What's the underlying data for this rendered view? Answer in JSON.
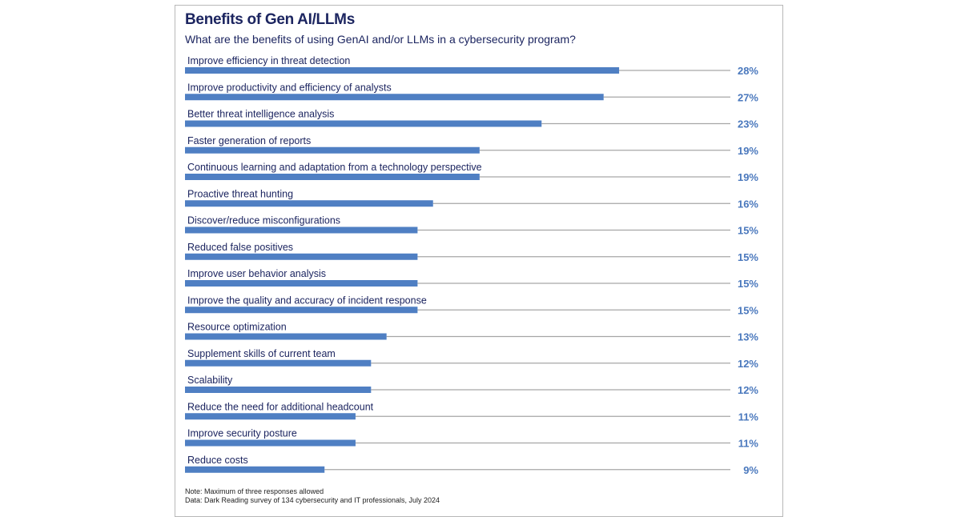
{
  "chart_data": {
    "type": "bar",
    "orientation": "horizontal",
    "title": "Benefits of Gen AI/LLMs",
    "subtitle": "What are the benefits of using GenAI and/or LLMs in a cybersecurity program?",
    "categories": [
      "Improve efficiency in threat detection",
      "Improve productivity and efficiency of analysts",
      "Better threat intelligence analysis",
      "Faster generation of reports",
      "Continuous learning and adaptation from a technology perspective",
      "Proactive threat hunting",
      "Discover/reduce misconfigurations",
      "Reduced false positives",
      "Improve user behavior analysis",
      "Improve the quality and accuracy of incident response",
      "Resource optimization",
      "Supplement skills of current team",
      "Scalability",
      "Reduce the need for additional headcount",
      "Improve security posture",
      "Reduce costs"
    ],
    "values": [
      28,
      27,
      23,
      19,
      19,
      16,
      15,
      15,
      15,
      15,
      13,
      12,
      12,
      11,
      11,
      9
    ],
    "value_suffix": "%",
    "xlim": [
      0,
      35
    ],
    "grid": false,
    "colors": {
      "bar": "#4f7fc3",
      "track": "#a6a6a6",
      "value_label": "#4a78bd",
      "title": "#1c2560"
    }
  },
  "notes": [
    "Note: Maximum of three responses allowed",
    "Data: Dark Reading survey of 134 cybersecurity and IT professionals, July 2024"
  ]
}
